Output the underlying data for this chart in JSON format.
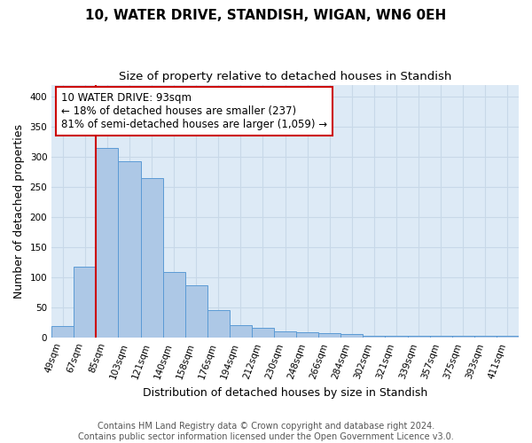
{
  "title_line1": "10, WATER DRIVE, STANDISH, WIGAN, WN6 0EH",
  "title_line2": "Size of property relative to detached houses in Standish",
  "xlabel": "Distribution of detached houses by size in Standish",
  "ylabel": "Number of detached properties",
  "categories": [
    "49sqm",
    "67sqm",
    "85sqm",
    "103sqm",
    "121sqm",
    "140sqm",
    "158sqm",
    "176sqm",
    "194sqm",
    "212sqm",
    "230sqm",
    "248sqm",
    "266sqm",
    "284sqm",
    "302sqm",
    "321sqm",
    "339sqm",
    "357sqm",
    "375sqm",
    "393sqm",
    "411sqm"
  ],
  "values": [
    19,
    118,
    315,
    293,
    265,
    108,
    87,
    45,
    20,
    16,
    10,
    8,
    7,
    5,
    3,
    2,
    2,
    2,
    3,
    2,
    2
  ],
  "bar_color": "#adc8e6",
  "bar_edge_color": "#5b9bd5",
  "marker_color": "#cc0000",
  "annotation_line1": "10 WATER DRIVE: 93sqm",
  "annotation_line2": "← 18% of detached houses are smaller (237)",
  "annotation_line3": "81% of semi-detached houses are larger (1,059) →",
  "annotation_box_color": "#ffffff",
  "annotation_box_edge": "#cc0000",
  "ylim": [
    0,
    420
  ],
  "yticks": [
    0,
    50,
    100,
    150,
    200,
    250,
    300,
    350,
    400
  ],
  "grid_color": "#c8d8e8",
  "background_color": "#ddeaf6",
  "footer_text": "Contains HM Land Registry data © Crown copyright and database right 2024.\nContains public sector information licensed under the Open Government Licence v3.0.",
  "title_fontsize": 11,
  "subtitle_fontsize": 9.5,
  "axis_label_fontsize": 9,
  "tick_fontsize": 7.5,
  "annotation_fontsize": 8.5,
  "footer_fontsize": 7
}
